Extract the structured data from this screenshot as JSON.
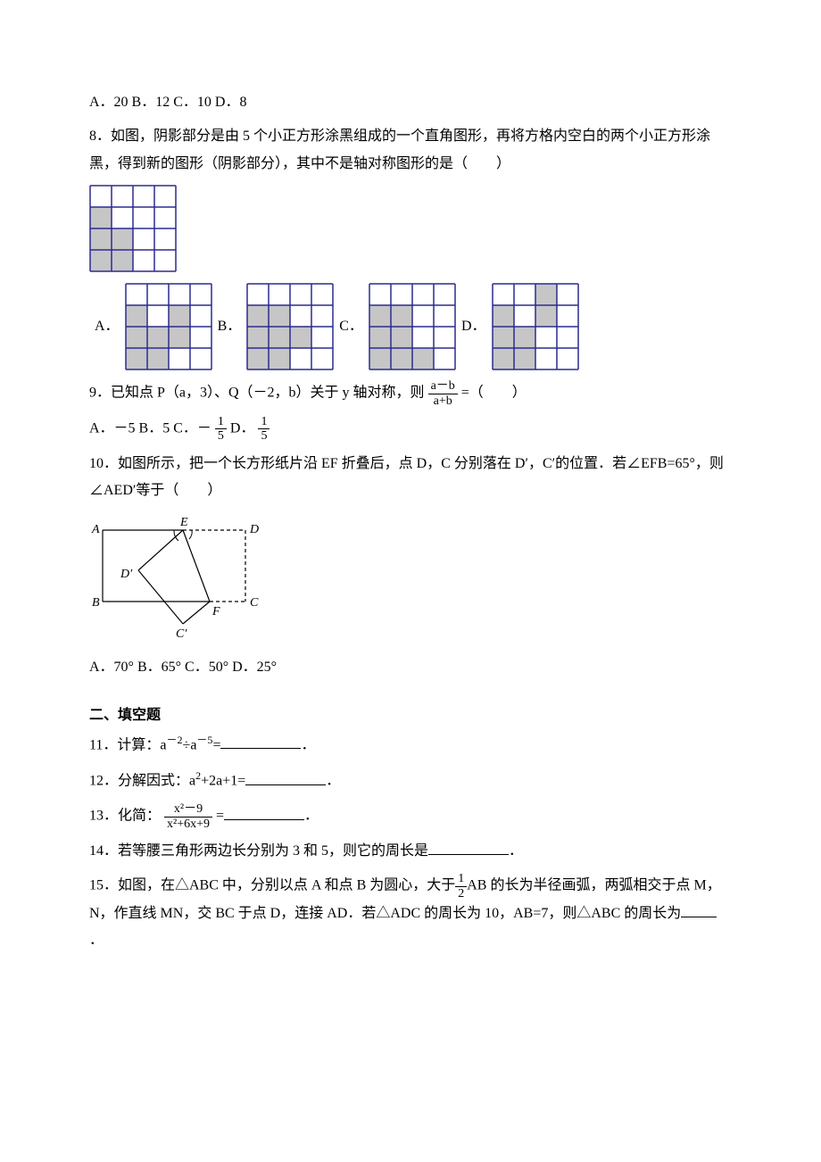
{
  "q7_choices": "A．20 B．12 C．10 D．8",
  "q8_text": "8．如图，阴影部分是由 5 个小正方形涂黑组成的一个直角图形，再将方格内空白的两个小正方形涂黑，得到新的图形（阴影部分），其中不是轴对称图形的是（　　）",
  "q9_pre": "9．已知点 P（a，3）、Q（－2，b）关于 y 轴对称，则",
  "q9_frac_num": "a－b",
  "q9_frac_den": "a+b",
  "q9_post": "=（　　）",
  "q9_choice_ab": "A．－5 B．5 C．－",
  "q9_choice_d": " D．",
  "q9_frac_c_num": "1",
  "q9_frac_c_den": "5",
  "q9_frac_d_num": "1",
  "q9_frac_d_den": "5",
  "q10_text": "10．如图所示，把一个长方形纸片沿 EF 折叠后，点 D，C 分别落在 D′，C′的位置．若∠EFB=65°，则∠AED′等于（　　）",
  "q10_choices": "A．70° B．65° C．50° D．25°",
  "section2": "二、填空题",
  "q11_pre": "11．计算：a",
  "q11_mid": "÷a",
  "q11_post": "=",
  "q11_end": "．",
  "q12_pre": "12．分解因式：a",
  "q12_post": "+2a+1=",
  "q12_end": "．",
  "q13_pre": "13．化简：",
  "q13_num": "x²－9",
  "q13_den": "x²+6x+9",
  "q13_eq": " =",
  "q13_end": "．",
  "q14_pre": "14．若等腰三角形两边长分别为 3 和 5，则它的周长是",
  "q14_end": "．",
  "q15_pre": "15．如图，在△ABC 中，分别以点 A 和点 B 为圆心，大于",
  "q15_frac_num": "1",
  "q15_frac_den": "2",
  "q15_mid": "AB 的长为半径画弧，两弧相交于点 M，N，作直线 MN，交 BC 于点 D，连接 AD．若△ADC 的周长为 10，AB=7，则△ABC 的周长为",
  "q15_end": "．",
  "grid_colors": {
    "border": "#2b2b8f",
    "fill": "#c6c6c6",
    "line": "#2b2b8f"
  },
  "stem_grid": {
    "rows": 4,
    "cols": 4,
    "cell": 24,
    "cells": [
      [
        1,
        0
      ],
      [
        2,
        0
      ],
      [
        2,
        1
      ],
      [
        3,
        0
      ],
      [
        3,
        1
      ]
    ]
  },
  "opt_grids": {
    "A": {
      "rows": 4,
      "cols": 4,
      "cell": 24,
      "cells": [
        [
          1,
          0
        ],
        [
          1,
          2
        ],
        [
          2,
          0
        ],
        [
          2,
          1
        ],
        [
          2,
          2
        ],
        [
          3,
          0
        ],
        [
          3,
          1
        ]
      ]
    },
    "B": {
      "rows": 4,
      "cols": 4,
      "cell": 24,
      "cells": [
        [
          1,
          0
        ],
        [
          1,
          1
        ],
        [
          2,
          0
        ],
        [
          2,
          1
        ],
        [
          2,
          2
        ],
        [
          3,
          0
        ],
        [
          3,
          1
        ]
      ]
    },
    "C": {
      "rows": 4,
      "cols": 4,
      "cell": 24,
      "cells": [
        [
          1,
          0
        ],
        [
          1,
          1
        ],
        [
          2,
          0
        ],
        [
          2,
          1
        ],
        [
          3,
          0
        ],
        [
          3,
          1
        ],
        [
          3,
          2
        ]
      ]
    },
    "D": {
      "rows": 4,
      "cols": 4,
      "cell": 24,
      "cells": [
        [
          0,
          2
        ],
        [
          1,
          0
        ],
        [
          1,
          2
        ],
        [
          2,
          0
        ],
        [
          2,
          1
        ],
        [
          3,
          0
        ],
        [
          3,
          1
        ]
      ]
    }
  },
  "fold_diagram": {
    "labels": {
      "A": "A",
      "B": "B",
      "C": "C",
      "D": "D",
      "E": "E",
      "F": "F",
      "D2": "D′",
      "C2": "C′"
    }
  }
}
